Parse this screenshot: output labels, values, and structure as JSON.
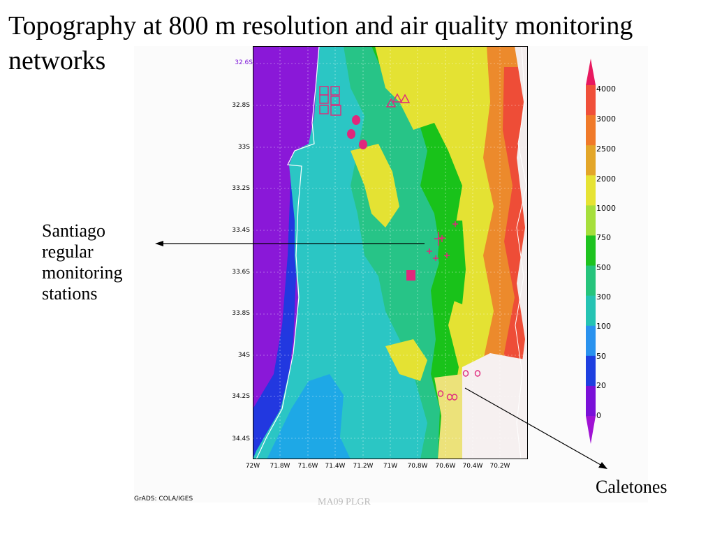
{
  "slide": {
    "title": "Topography at 800 m resolution and air quality monitoring networks",
    "annotation_santiago": "Santiago\nregular\nmonitoring\nstations",
    "annotation_caletones": "Caletones",
    "credit": "GrADS: COLA/IGES",
    "footer_text": "MA09 PLGR"
  },
  "map": {
    "partial_top_label": "32.6S",
    "y_axis_labels": [
      "32.8S",
      "33S",
      "33.2S",
      "33.4S",
      "33.6S",
      "33.8S",
      "34S",
      "34.2S",
      "34.4S"
    ],
    "x_axis_labels": [
      "72W",
      "71.8W",
      "71.6W",
      "71.4W",
      "71.2W",
      "71W",
      "70.8W",
      "70.6W",
      "70.4W",
      "70.2W"
    ],
    "colorbar": {
      "labels": [
        "4000",
        "3000",
        "2500",
        "2000",
        "1000",
        "750",
        "500",
        "300",
        "100",
        "50",
        "20",
        "0"
      ],
      "colors": [
        "#e8195f",
        "#f0503a",
        "#f07a2a",
        "#e3a629",
        "#e6e334",
        "#a6df3c",
        "#1ec31f",
        "#26c47c",
        "#25c3b3",
        "#2a92ee",
        "#1e3fe0",
        "#7a10d8",
        "#a012d4"
      ]
    },
    "marker_color": "#e0287c"
  }
}
